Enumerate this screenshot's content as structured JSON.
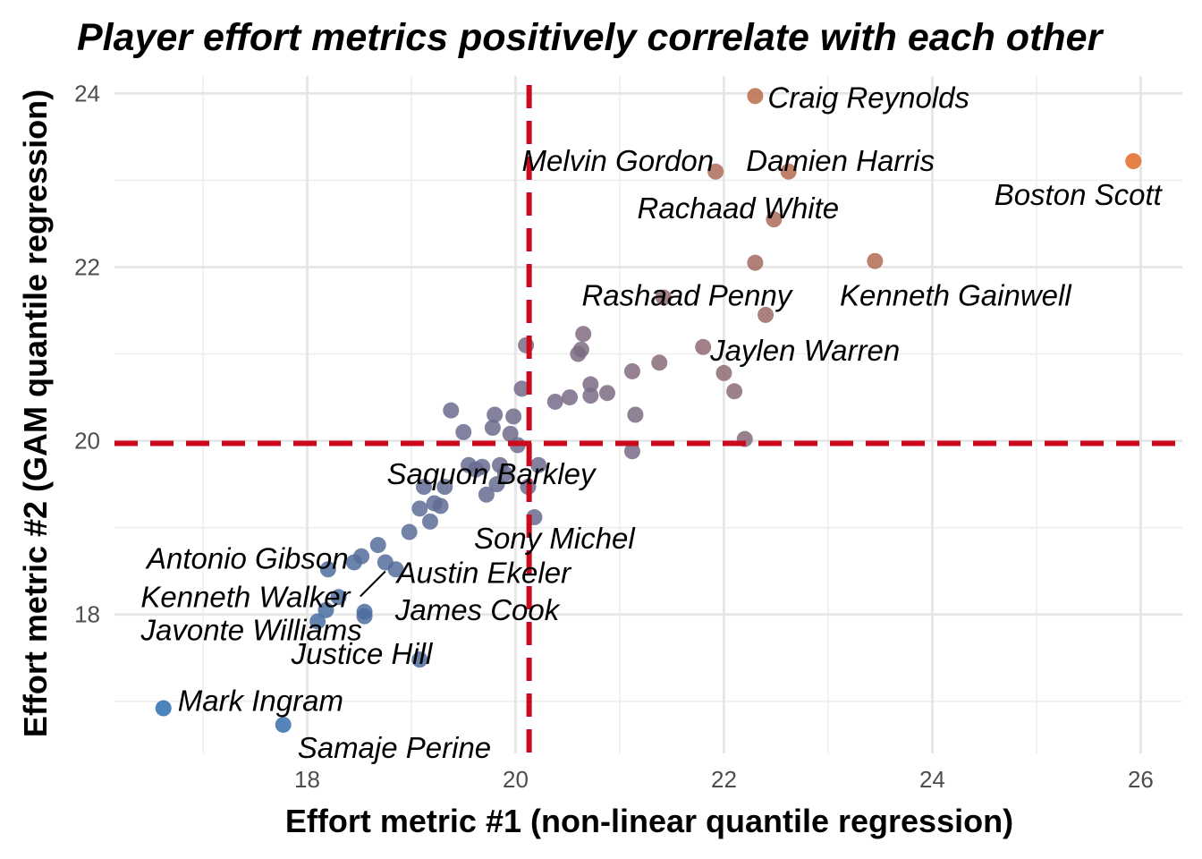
{
  "chart_data": {
    "type": "scatter",
    "title": "Player effort metrics positively correlate with each other",
    "xlabel": "Effort metric #1 (non-linear quantile regression)",
    "ylabel": "Effort metric #2 (GAM quantile regression)",
    "xlim": [
      16.15,
      26.4
    ],
    "ylim": [
      16.4,
      24.2
    ],
    "x_ticks": [
      18,
      20,
      22,
      24,
      26
    ],
    "y_ticks": [
      18,
      20,
      22,
      24
    ],
    "x_tick_labels": [
      "18",
      "20",
      "22",
      "24",
      "26"
    ],
    "y_tick_labels": [
      "18",
      "20",
      "22",
      "24"
    ],
    "reference_lines": {
      "x": 20.13,
      "y": 19.97,
      "color": "#cc0a1e",
      "style": "dashed"
    },
    "color_scale": {
      "low": "#2f6fb0",
      "mid": "#7b6b85",
      "high": "#e06b25"
    },
    "grid": true,
    "legend": "none",
    "points": [
      {
        "x": 16.62,
        "y": 16.92,
        "label": "Mark Ingram"
      },
      {
        "x": 17.77,
        "y": 16.73,
        "label": "Samaje Perine"
      },
      {
        "x": 18.1,
        "y": 17.92,
        "label": "Javonte Williams"
      },
      {
        "x": 18.18,
        "y": 18.05
      },
      {
        "x": 18.3,
        "y": 18.2,
        "label": "Kenneth Walker"
      },
      {
        "x": 18.2,
        "y": 18.52,
        "label": "Antonio Gibson"
      },
      {
        "x": 18.45,
        "y": 18.6
      },
      {
        "x": 18.52,
        "y": 18.67
      },
      {
        "x": 18.55,
        "y": 18.03,
        "label": "James Cook"
      },
      {
        "x": 18.55,
        "y": 17.98
      },
      {
        "x": 18.68,
        "y": 18.8
      },
      {
        "x": 18.75,
        "y": 18.6,
        "label": "Austin Ekeler"
      },
      {
        "x": 18.85,
        "y": 18.52
      },
      {
        "x": 18.98,
        "y": 18.95
      },
      {
        "x": 19.08,
        "y": 17.48,
        "label": "Justice Hill"
      },
      {
        "x": 19.08,
        "y": 19.22
      },
      {
        "x": 19.12,
        "y": 19.47
      },
      {
        "x": 19.18,
        "y": 19.07
      },
      {
        "x": 19.22,
        "y": 19.28
      },
      {
        "x": 19.28,
        "y": 19.25
      },
      {
        "x": 19.32,
        "y": 19.47
      },
      {
        "x": 19.38,
        "y": 20.35
      },
      {
        "x": 19.5,
        "y": 20.1
      },
      {
        "x": 19.55,
        "y": 19.72
      },
      {
        "x": 19.62,
        "y": 19.67
      },
      {
        "x": 19.68,
        "y": 19.7
      },
      {
        "x": 19.72,
        "y": 19.38,
        "label": "Sony Michel"
      },
      {
        "x": 19.78,
        "y": 20.15
      },
      {
        "x": 19.8,
        "y": 20.3
      },
      {
        "x": 19.82,
        "y": 19.5
      },
      {
        "x": 19.85,
        "y": 19.72,
        "label": "Saquon Barkley"
      },
      {
        "x": 19.9,
        "y": 19.62
      },
      {
        "x": 19.95,
        "y": 20.08
      },
      {
        "x": 19.98,
        "y": 20.28
      },
      {
        "x": 20.02,
        "y": 19.95
      },
      {
        "x": 20.06,
        "y": 20.6
      },
      {
        "x": 20.1,
        "y": 21.1
      },
      {
        "x": 20.12,
        "y": 19.47
      },
      {
        "x": 20.18,
        "y": 19.12
      },
      {
        "x": 20.22,
        "y": 19.72
      },
      {
        "x": 20.38,
        "y": 20.45
      },
      {
        "x": 20.52,
        "y": 20.5
      },
      {
        "x": 20.6,
        "y": 21.0
      },
      {
        "x": 20.63,
        "y": 21.05
      },
      {
        "x": 20.65,
        "y": 21.23
      },
      {
        "x": 20.72,
        "y": 20.65
      },
      {
        "x": 20.72,
        "y": 20.52
      },
      {
        "x": 20.88,
        "y": 20.55
      },
      {
        "x": 21.12,
        "y": 19.88
      },
      {
        "x": 21.12,
        "y": 20.8
      },
      {
        "x": 21.15,
        "y": 20.3
      },
      {
        "x": 21.38,
        "y": 20.9
      },
      {
        "x": 21.42,
        "y": 21.65,
        "label": "Rashaad Penny"
      },
      {
        "x": 21.8,
        "y": 21.08,
        "label": "Jaylen Warren"
      },
      {
        "x": 21.92,
        "y": 23.1,
        "label": "Melvin Gordon"
      },
      {
        "x": 22.0,
        "y": 20.78
      },
      {
        "x": 22.1,
        "y": 20.57
      },
      {
        "x": 22.2,
        "y": 20.02
      },
      {
        "x": 22.3,
        "y": 22.05
      },
      {
        "x": 22.3,
        "y": 23.97,
        "label": "Craig Reynolds"
      },
      {
        "x": 22.4,
        "y": 21.45
      },
      {
        "x": 22.48,
        "y": 22.55,
        "label": "Rachaad White"
      },
      {
        "x": 22.62,
        "y": 23.1,
        "label": "Damien Harris"
      },
      {
        "x": 23.45,
        "y": 22.07,
        "label": "Kenneth Gainwell"
      },
      {
        "x": 25.93,
        "y": 23.22,
        "label": "Boston Scott"
      }
    ]
  }
}
